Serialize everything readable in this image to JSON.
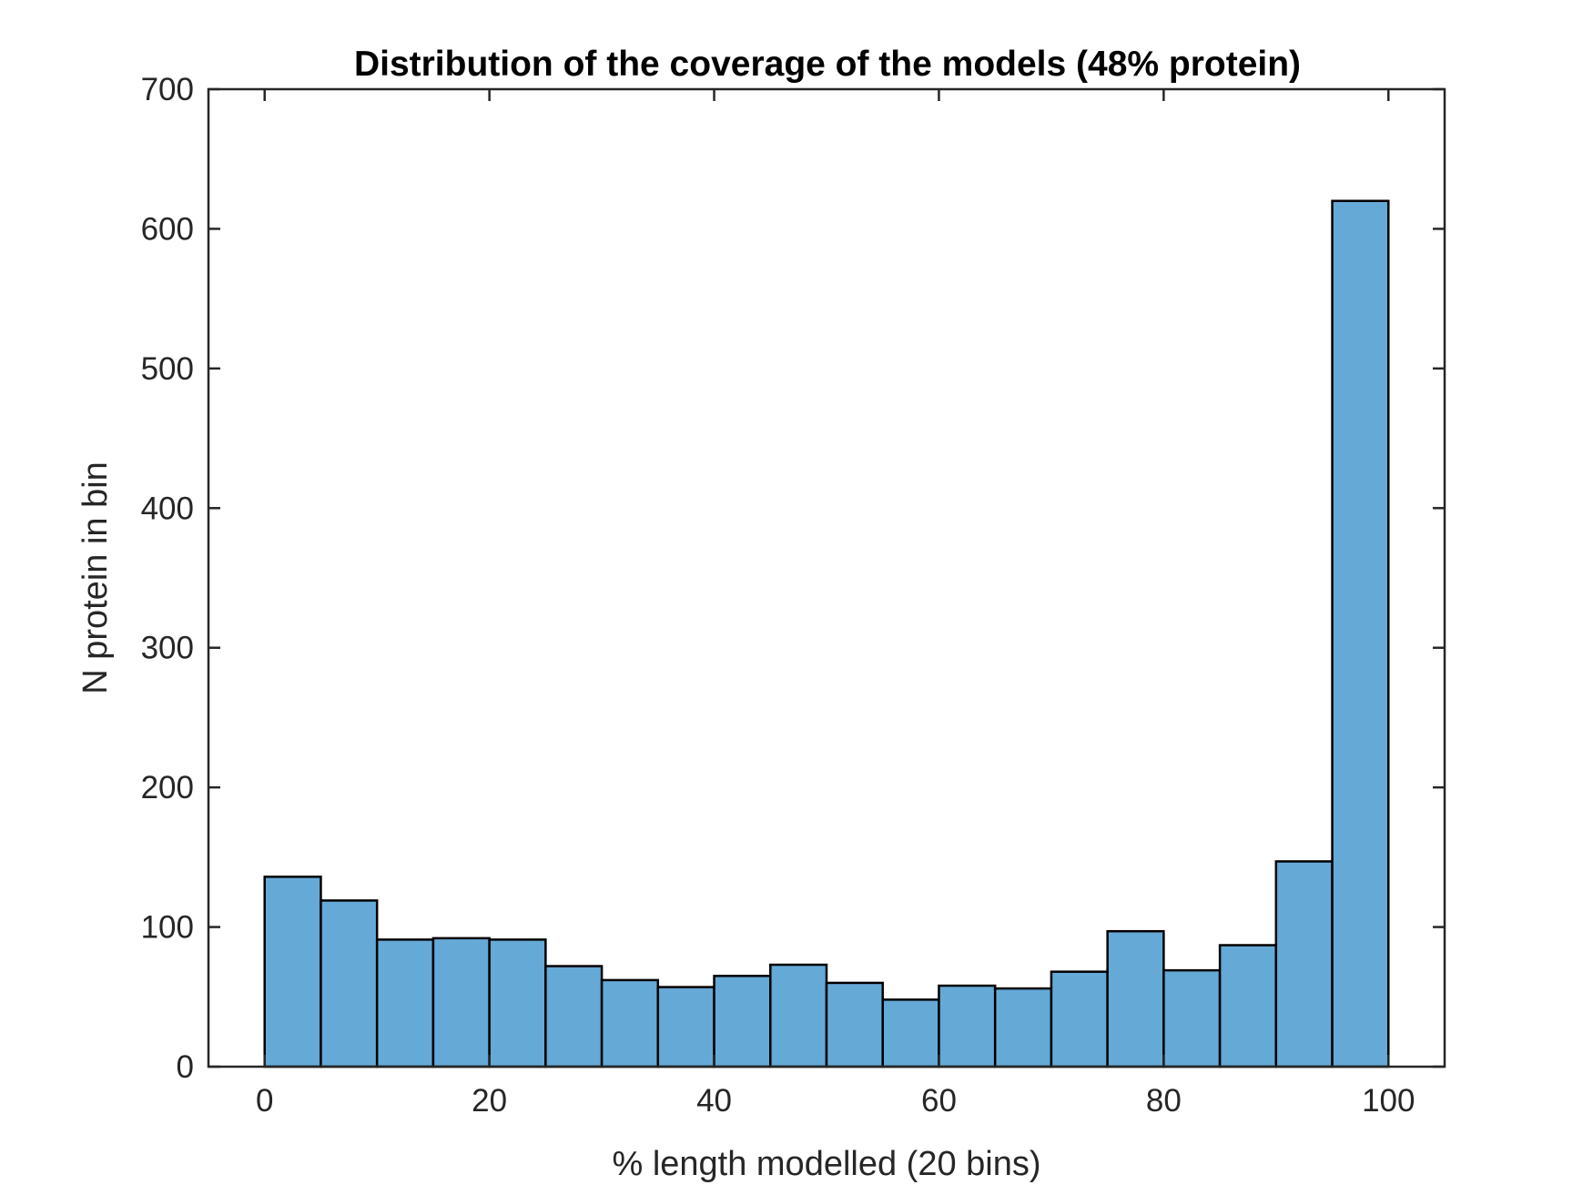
{
  "chart_data": {
    "type": "bar",
    "title": "Distribution of the coverage of the models (48% protein)",
    "xlabel": "% length modelled (20 bins)",
    "ylabel": "N protein in bin",
    "xlim": [
      -5,
      105
    ],
    "ylim": [
      0,
      700
    ],
    "xticks": [
      0,
      20,
      40,
      60,
      80,
      100
    ],
    "yticks": [
      0,
      100,
      200,
      300,
      400,
      500,
      600,
      700
    ],
    "bin_width": 5,
    "bin_edges": [
      0,
      5,
      10,
      15,
      20,
      25,
      30,
      35,
      40,
      45,
      50,
      55,
      60,
      65,
      70,
      75,
      80,
      85,
      90,
      95,
      100
    ],
    "values": [
      136,
      119,
      91,
      92,
      91,
      72,
      62,
      57,
      65,
      73,
      60,
      48,
      58,
      56,
      68,
      97,
      69,
      87,
      147,
      620
    ],
    "bar_color": "#65A9D7",
    "edge_color": "#000000",
    "grid": false
  }
}
